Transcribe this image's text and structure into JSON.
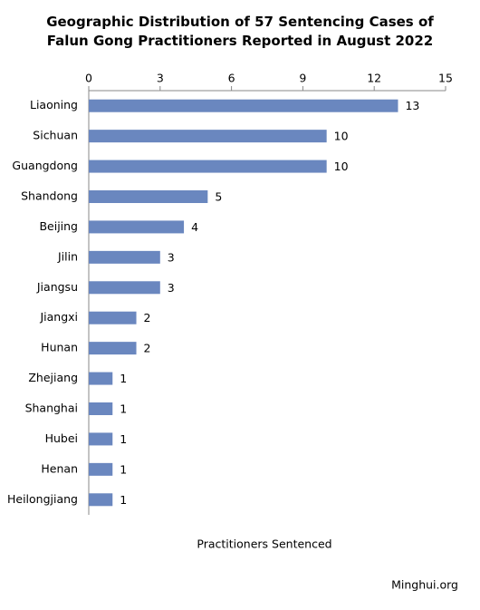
{
  "chart_data": {
    "type": "hbar",
    "title": "Geographic Distribution of 57 Sentencing Cases of Falun Gong Practitioners Reported in August 2022",
    "x_label": "Practitioners Sentenced",
    "source": "Minghui.org",
    "categories": [
      "Liaoning",
      "Sichuan",
      "Guangdong",
      "Shandong",
      "Beijing",
      "Jilin",
      "Jiangsu",
      "Jiangxi",
      "Hunan",
      "Zhejiang",
      "Shanghai",
      "Hubei",
      "Henan",
      "Heilongjiang"
    ],
    "values": [
      13,
      10,
      10,
      5,
      4,
      3,
      3,
      2,
      2,
      1,
      1,
      1,
      1,
      1
    ],
    "color": "#6a87bf",
    "xlim": [
      0,
      15
    ],
    "xticks": [
      0,
      3,
      6,
      9,
      12,
      15
    ],
    "grid": false
  }
}
